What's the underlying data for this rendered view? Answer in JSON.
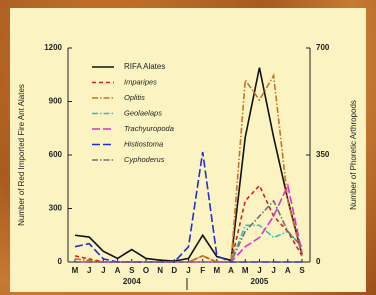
{
  "chart_data": {
    "type": "line",
    "ylabel": "Number of Red Imported Fire Ant Alates",
    "y2label": "Number of Phoretic Arthropods",
    "categories": [
      "M",
      "J",
      "J",
      "A",
      "S",
      "O",
      "N",
      "D",
      "J",
      "F",
      "M",
      "A",
      "M",
      "J",
      "J",
      "A",
      "S"
    ],
    "year_labels": [
      "2004",
      "2005"
    ],
    "ylim": [
      0,
      1200
    ],
    "yticks": [
      0,
      300,
      600,
      900,
      1200
    ],
    "y2lim": [
      0,
      700
    ],
    "y2ticks": [
      0,
      350,
      700
    ],
    "legend": "upper left",
    "series": [
      {
        "name": "RIFA Alates",
        "color": "#111111",
        "dash": "solid",
        "axis": "y",
        "values": [
          150,
          140,
          60,
          20,
          70,
          20,
          10,
          5,
          20,
          150,
          30,
          10,
          700,
          1090,
          700,
          350,
          40
        ]
      },
      {
        "name": "Imparipes",
        "color": "#d42020",
        "dash": "dashed",
        "axis": "y2",
        "values": [
          20,
          10,
          0,
          0,
          0,
          0,
          0,
          0,
          0,
          20,
          0,
          0,
          200,
          250,
          150,
          100,
          20
        ]
      },
      {
        "name": "Oplitis",
        "color": "#c8741c",
        "dash": "dashdot",
        "axis": "y2",
        "values": [
          10,
          5,
          0,
          0,
          0,
          0,
          0,
          0,
          0,
          20,
          0,
          0,
          595,
          530,
          610,
          200,
          20
        ]
      },
      {
        "name": "Geolaelaps",
        "color": "#30c0c0",
        "dash": "dashdot",
        "axis": "y2",
        "values": [
          0,
          0,
          0,
          0,
          0,
          0,
          0,
          0,
          0,
          0,
          0,
          0,
          120,
          120,
          80,
          100,
          50
        ]
      },
      {
        "name": "Trachyuropoda",
        "color": "#e030d0",
        "dash": "longdash",
        "axis": "y2",
        "values": [
          0,
          0,
          0,
          0,
          0,
          0,
          0,
          0,
          0,
          0,
          0,
          0,
          50,
          80,
          150,
          250,
          30
        ]
      },
      {
        "name": "Histiostoma",
        "color": "#2030d0",
        "dash": "longdash",
        "axis": "y2",
        "values": [
          50,
          60,
          10,
          0,
          0,
          0,
          0,
          0,
          50,
          360,
          20,
          0,
          0,
          0,
          0,
          0,
          0
        ]
      },
      {
        "name": "Cyphoderus",
        "color": "#707070",
        "dash": "dashdot",
        "axis": "y2",
        "values": [
          0,
          0,
          0,
          0,
          0,
          0,
          0,
          0,
          0,
          0,
          0,
          0,
          100,
          150,
          200,
          100,
          50
        ]
      }
    ]
  }
}
